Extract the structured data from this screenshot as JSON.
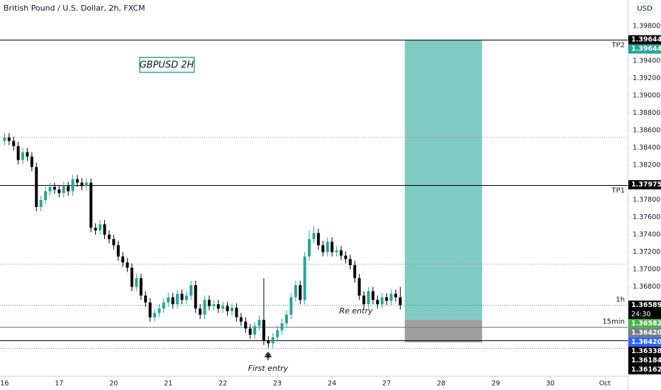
{
  "chart_data": {
    "type": "candlestick",
    "title": "British Pound / U.S. Dollar, 2h, FXCM",
    "currency": "USD",
    "up_color": "#26a69a",
    "down_color": "#000000",
    "ylim": [
      1.35776,
      1.40102
    ],
    "xlim": [
      -1,
      137
    ],
    "yticks": [
      {
        "value": 1.398,
        "label": "1.39800"
      },
      {
        "value": 1.394,
        "label": "1.39400"
      },
      {
        "value": 1.392,
        "label": "1.39200"
      },
      {
        "value": 1.39,
        "label": "1.39000"
      },
      {
        "value": 1.388,
        "label": "1.38800"
      },
      {
        "value": 1.386,
        "label": "1.38600"
      },
      {
        "value": 1.384,
        "label": "1.38400"
      },
      {
        "value": 1.382,
        "label": "1.38200"
      },
      {
        "value": 1.378,
        "label": "1.37800"
      },
      {
        "value": 1.376,
        "label": "1.37600"
      },
      {
        "value": 1.374,
        "label": "1.37400"
      },
      {
        "value": 1.372,
        "label": "1.37200"
      },
      {
        "value": 1.37,
        "label": "1.37000"
      },
      {
        "value": 1.368,
        "label": "1.36800"
      }
    ],
    "xticks": [
      {
        "value": 0,
        "label": "16"
      },
      {
        "value": 12,
        "label": "17"
      },
      {
        "value": 24,
        "label": "20"
      },
      {
        "value": 36,
        "label": "21"
      },
      {
        "value": 48,
        "label": "22"
      },
      {
        "value": 60,
        "label": "23"
      },
      {
        "value": 72,
        "label": "24"
      },
      {
        "value": 84,
        "label": "27"
      },
      {
        "value": 96,
        "label": "28"
      },
      {
        "value": 108,
        "label": "29"
      },
      {
        "value": 120,
        "label": "30"
      },
      {
        "value": 132,
        "label": "Oct"
      }
    ],
    "open": [
      1.3848,
      1.3852,
      1.3848,
      1.3842,
      1.3826,
      1.3835,
      1.383,
      1.3818,
      1.3772,
      1.378,
      1.379,
      1.3795,
      1.3792,
      1.3788,
      1.3796,
      1.379,
      1.3804,
      1.38,
      1.3796,
      1.38,
      1.3748,
      1.3745,
      1.3752,
      1.374,
      1.3735,
      1.3728,
      1.3715,
      1.3708,
      1.3702,
      1.368,
      1.369,
      1.367,
      1.3662,
      1.3645,
      1.365,
      1.3655,
      1.3662,
      1.3668,
      1.366,
      1.3672,
      1.3665,
      1.367,
      1.3682,
      1.3655,
      1.3648,
      1.3665,
      1.3658,
      1.366,
      1.3655,
      1.3658,
      1.3652,
      1.3656,
      1.3645,
      1.364,
      1.3632,
      1.3625,
      1.3635,
      1.3642,
      1.3618,
      1.3615,
      1.3622,
      1.363,
      1.3638,
      1.3648,
      1.3668,
      1.3682,
      1.3665,
      1.3715,
      1.3735,
      1.3742,
      1.3728,
      1.372,
      1.3732,
      1.372,
      1.3722,
      1.3716,
      1.3712,
      1.3705,
      1.369,
      1.367,
      1.366,
      1.3675,
      1.3665,
      1.366,
      1.3668,
      1.3664,
      1.3672,
      1.3668
    ],
    "high": [
      1.3857,
      1.3857,
      1.3853,
      1.3847,
      1.384,
      1.384,
      1.3835,
      1.3823,
      1.3785,
      1.3795,
      1.38,
      1.38,
      1.3797,
      1.3801,
      1.3801,
      1.3809,
      1.3809,
      1.3805,
      1.3805,
      1.3805,
      1.3753,
      1.3757,
      1.3757,
      1.3745,
      1.374,
      1.3733,
      1.372,
      1.3713,
      1.3707,
      1.3695,
      1.3695,
      1.3675,
      1.3667,
      1.3655,
      1.366,
      1.3667,
      1.3673,
      1.3673,
      1.3677,
      1.3677,
      1.3675,
      1.3687,
      1.3687,
      1.366,
      1.367,
      1.367,
      1.3665,
      1.3665,
      1.3663,
      1.3663,
      1.3661,
      1.3661,
      1.365,
      1.3645,
      1.3637,
      1.364,
      1.3647,
      1.369,
      1.3623,
      1.3627,
      1.3635,
      1.3643,
      1.3653,
      1.3673,
      1.3687,
      1.3687,
      1.372,
      1.3745,
      1.375,
      1.3747,
      1.3733,
      1.3737,
      1.3737,
      1.3727,
      1.3727,
      1.3721,
      1.3717,
      1.371,
      1.3695,
      1.3675,
      1.368,
      1.368,
      1.367,
      1.3673,
      1.3673,
      1.3677,
      1.3677,
      1.368
    ],
    "low": [
      1.3843,
      1.3843,
      1.3837,
      1.3821,
      1.3821,
      1.3825,
      1.3813,
      1.3767,
      1.3767,
      1.3775,
      1.3785,
      1.3787,
      1.3783,
      1.3783,
      1.3785,
      1.3785,
      1.3795,
      1.3791,
      1.3791,
      1.3743,
      1.374,
      1.374,
      1.3735,
      1.373,
      1.3723,
      1.371,
      1.3703,
      1.3697,
      1.3675,
      1.3675,
      1.3665,
      1.3657,
      1.364,
      1.364,
      1.3645,
      1.365,
      1.3657,
      1.3655,
      1.3655,
      1.366,
      1.366,
      1.3665,
      1.365,
      1.3643,
      1.3643,
      1.3653,
      1.3653,
      1.365,
      1.365,
      1.3647,
      1.3647,
      1.364,
      1.3635,
      1.3627,
      1.362,
      1.362,
      1.363,
      1.3613,
      1.361,
      1.361,
      1.3617,
      1.3625,
      1.3633,
      1.3643,
      1.3663,
      1.366,
      1.366,
      1.371,
      1.373,
      1.3723,
      1.3715,
      1.3715,
      1.3715,
      1.3715,
      1.3711,
      1.3707,
      1.37,
      1.3685,
      1.3665,
      1.3655,
      1.3655,
      1.366,
      1.3655,
      1.3655,
      1.3659,
      1.3659,
      1.3663,
      1.3654
    ],
    "close": [
      1.3852,
      1.3848,
      1.3842,
      1.3826,
      1.3835,
      1.383,
      1.3818,
      1.3772,
      1.378,
      1.379,
      1.3795,
      1.3792,
      1.3788,
      1.3796,
      1.379,
      1.3804,
      1.38,
      1.3796,
      1.38,
      1.3748,
      1.3745,
      1.3752,
      1.374,
      1.3735,
      1.3728,
      1.3715,
      1.3708,
      1.3702,
      1.368,
      1.369,
      1.367,
      1.3662,
      1.3645,
      1.365,
      1.3655,
      1.3662,
      1.3668,
      1.366,
      1.3672,
      1.3665,
      1.367,
      1.3682,
      1.3655,
      1.3648,
      1.3665,
      1.3658,
      1.366,
      1.3655,
      1.3658,
      1.3652,
      1.3656,
      1.3645,
      1.364,
      1.3632,
      1.3625,
      1.3635,
      1.3642,
      1.3618,
      1.3615,
      1.3622,
      1.363,
      1.3638,
      1.3648,
      1.3668,
      1.3682,
      1.3665,
      1.3715,
      1.3735,
      1.3742,
      1.3728,
      1.372,
      1.3732,
      1.372,
      1.3722,
      1.3716,
      1.3712,
      1.3705,
      1.369,
      1.367,
      1.366,
      1.3675,
      1.3665,
      1.366,
      1.3668,
      1.3664,
      1.3672,
      1.3668,
      1.36589
    ],
    "lines": [
      {
        "value": 1.39644,
        "style": "solid",
        "color": "#000000",
        "label": "TP2"
      },
      {
        "value": 1.37975,
        "style": "solid",
        "color": "#000000",
        "label": "TP1"
      },
      {
        "value": 1.38527,
        "style": "dotted",
        "color": "#9598a1"
      },
      {
        "value": 1.37065,
        "style": "dotted",
        "color": "#9598a1"
      },
      {
        "value": 1.36589,
        "style": "dotted",
        "color": "#26a69a",
        "label": "1h"
      },
      {
        "value": 1.36339,
        "style": "solid",
        "color": "#787b86",
        "label": "15min"
      },
      {
        "value": 1.36184,
        "style": "solid",
        "color": "#000000"
      },
      {
        "value": 1.36094,
        "style": "dotted",
        "color": "#787b86"
      }
    ],
    "position": {
      "entry": 1.3642,
      "target": 1.39644,
      "stop": 1.36162,
      "start": 88,
      "end": 105,
      "target_color": "#80cbc4",
      "stop_color": "#9e9e9e"
    },
    "price_labels": [
      {
        "value": 1.39644,
        "label": "1.39644",
        "color": "#000000"
      },
      {
        "value": 1.39644,
        "label": "1.39644",
        "color": "#26a69a"
      },
      {
        "value": 1.37975,
        "label": "1.37975",
        "color": "#000000"
      },
      {
        "value": 1.36589,
        "label": "1.36589",
        "color": "#000000",
        "countdown": "24:30"
      },
      {
        "value": 1.36582,
        "label": "1.36582",
        "color": "#4caf50"
      },
      {
        "value": 1.3642,
        "label": "1.36420",
        "color": "#787b86"
      },
      {
        "value": 1.3642,
        "label": "1.36420",
        "color": "#2962ff"
      },
      {
        "value": 1.36338,
        "label": "1.36338",
        "color": "#000000"
      },
      {
        "value": 1.36184,
        "label": "1.36184",
        "color": "#000000"
      },
      {
        "value": 1.36162,
        "label": "1.36162",
        "color": "#000000"
      }
    ],
    "annotations": [
      "GBPUSD 2H",
      "Re entry",
      "First entry"
    ]
  }
}
